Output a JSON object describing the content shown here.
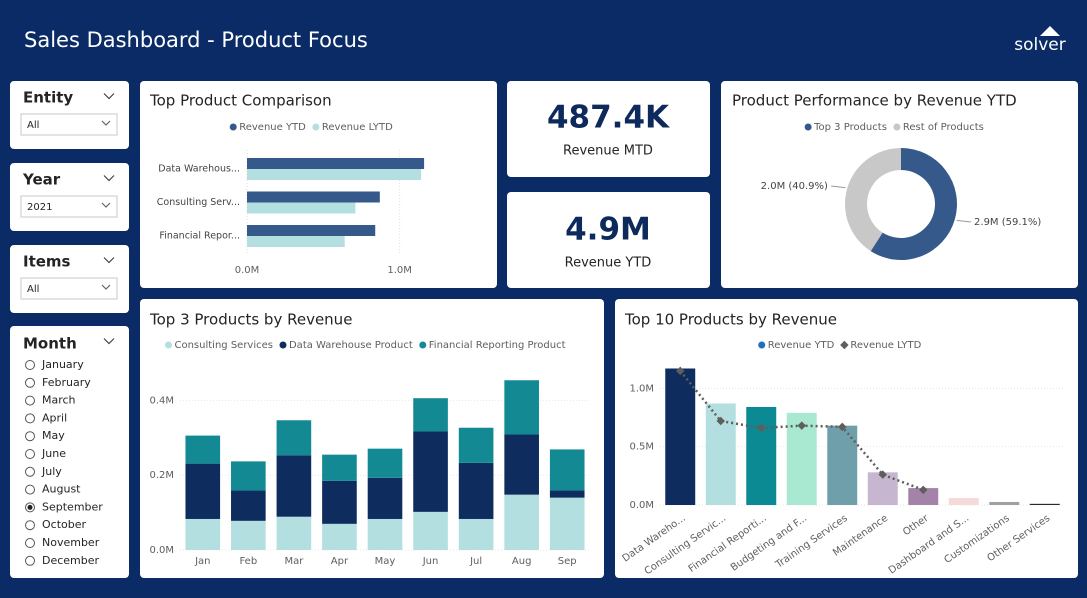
{
  "header": {
    "title": "Sales Dashboard - Product Focus",
    "logo": "solver"
  },
  "slicers": [
    {
      "title": "Entity",
      "value": "All"
    },
    {
      "title": "Year",
      "value": "2021"
    },
    {
      "title": "Items",
      "value": "All"
    }
  ],
  "month_slicer": {
    "title": "Month",
    "options": [
      "January",
      "February",
      "March",
      "April",
      "May",
      "June",
      "July",
      "August",
      "September",
      "October",
      "November",
      "December"
    ],
    "selected": "September"
  },
  "kpis": [
    {
      "value": "487.4K",
      "label": "Revenue MTD"
    },
    {
      "value": "4.9M",
      "label": "Revenue YTD"
    }
  ],
  "chart_data": [
    {
      "type": "bar",
      "orientation": "horizontal",
      "title": "Top Product Comparison",
      "categories": [
        "Data Warehous...",
        "Consulting Serv...",
        "Financial Repor..."
      ],
      "series": [
        {
          "name": "Revenue YTD",
          "color": "#34598a",
          "values": [
            1160000,
            870000,
            840000
          ]
        },
        {
          "name": "Revenue LYTD",
          "color": "#b3dfe0",
          "values": [
            1140000,
            710000,
            640000
          ]
        }
      ],
      "xlim": [
        0,
        1500000
      ],
      "xticks": [
        {
          "value": 0,
          "label": "0.0M"
        },
        {
          "value": 1000000,
          "label": "1.0M"
        }
      ],
      "grid": true
    },
    {
      "type": "pie",
      "donut": true,
      "title": "Product Performance by Revenue YTD",
      "categories": [
        "Top 3 Products",
        "Rest of Products"
      ],
      "values": [
        59.1,
        40.9
      ],
      "value_labels": [
        "2.9M (59.1%)",
        "2.0M (40.9%)"
      ],
      "colors": [
        "#34598a",
        "#c8c8c8"
      ]
    },
    {
      "type": "bar",
      "stacked": true,
      "title": "Top 3 Products by Revenue",
      "categories": [
        "Jan",
        "Feb",
        "Mar",
        "Apr",
        "May",
        "Jun",
        "Jul",
        "Aug",
        "Sep"
      ],
      "series": [
        {
          "name": "Consulting Services",
          "color": "#b3dfe0",
          "values": [
            83000,
            78000,
            89000,
            70000,
            83000,
            102000,
            83000,
            148000,
            140000
          ]
        },
        {
          "name": "Data Warehouse Product",
          "color": "#0e2d5e",
          "values": [
            148000,
            81000,
            164000,
            115000,
            110000,
            215000,
            150000,
            161000,
            19000
          ]
        },
        {
          "name": "Financial Reporting Product",
          "color": "#138a93",
          "values": [
            75000,
            78000,
            94000,
            70000,
            78000,
            89000,
            94000,
            145000,
            110000
          ]
        }
      ],
      "ylim": [
        0,
        460000
      ],
      "yticks": [
        {
          "value": 0,
          "label": "0.0M"
        },
        {
          "value": 200000,
          "label": "0.2M"
        },
        {
          "value": 400000,
          "label": "0.4M"
        }
      ],
      "grid": true
    },
    {
      "type": "bar",
      "title": "Top 10 Products by Revenue",
      "categories": [
        "Data Wareho...",
        "Consulting Servic...",
        "Financial Reporti...",
        "Budgeting and F...",
        "Training Services",
        "Maintenance",
        "Other",
        "Dashboard and S...",
        "Customizations",
        "Other Services"
      ],
      "series": [
        {
          "name": "Revenue YTD",
          "color": "#1f6fbf",
          "colors": [
            "#0e2d5e",
            "#b3dfe0",
            "#0b8a94",
            "#a9e9d1",
            "#6f9fab",
            "#c7b6d0",
            "#a384a8",
            "#f6d9d9",
            "#a0a0a0",
            "#2b2b2b"
          ],
          "values": [
            1170000,
            870000,
            840000,
            790000,
            680000,
            280000,
            145000,
            60000,
            26000,
            10000
          ]
        },
        {
          "name": "Revenue LYTD",
          "type": "line",
          "color": "#605e5c",
          "values": [
            1150000,
            720000,
            660000,
            680000,
            670000,
            260000,
            130000,
            null,
            null,
            null
          ]
        }
      ],
      "ylim": [
        0,
        1200000
      ],
      "yticks": [
        {
          "value": 0,
          "label": "0.0M"
        },
        {
          "value": 500000,
          "label": "0.5M"
        },
        {
          "value": 1000000,
          "label": "1.0M"
        }
      ],
      "grid": true
    }
  ]
}
